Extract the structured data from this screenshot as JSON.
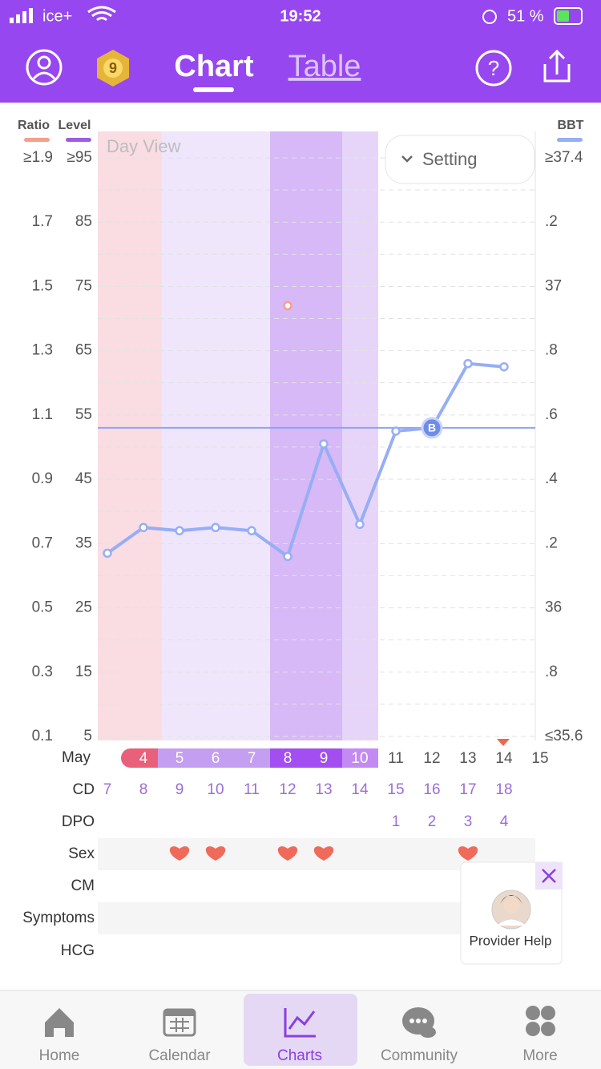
{
  "status_bar": {
    "carrier": "ice+",
    "time": "19:52",
    "battery": "51 %"
  },
  "header": {
    "badge": "9",
    "tabs": [
      "Chart",
      "Table"
    ]
  },
  "chart_data": {
    "type": "line",
    "overlay_label": "Day View",
    "setting_button": "Setting",
    "axis_titles": {
      "ratio": "Ratio",
      "level": "Level",
      "bbt": "BBT"
    },
    "month": "May",
    "x": [
      null,
      "4",
      "5",
      "6",
      "7",
      "8",
      "9",
      "10",
      "11",
      "12",
      "13",
      "14",
      "15"
    ],
    "ylim": [
      0.1,
      1.9
    ],
    "yticks": [
      {
        "value": 1.9,
        "label": "≥1.9"
      },
      1.7,
      1.5,
      1.3,
      1.1,
      0.9,
      0.7,
      0.5,
      0.3,
      0.1
    ],
    "level_lim": [
      5,
      95
    ],
    "level_ticks": [
      {
        "value": 95,
        "label": "≥95"
      },
      85,
      75,
      65,
      55,
      45,
      35,
      25,
      15,
      5
    ],
    "y2lim": [
      35.6,
      37.4
    ],
    "y2ticks": [
      {
        "value": 37.4,
        "label": "≥37.4"
      },
      {
        "value": 37.2,
        "label": ".2"
      },
      37,
      {
        "value": 36.8,
        "label": ".8"
      },
      {
        "value": 36.6,
        "label": ".6"
      },
      {
        "value": 36.4,
        "label": ".4"
      },
      {
        "value": 36.2,
        "label": ".2"
      },
      36,
      {
        "value": 35.8,
        "label": ".8"
      },
      {
        "value": 35.6,
        "label": "≤35.6"
      }
    ],
    "grid": true,
    "series": [
      {
        "name": "BBT",
        "color": "#97aef5",
        "axis": "y2",
        "values": [
          36.17,
          36.25,
          36.24,
          36.25,
          36.24,
          36.16,
          36.51,
          36.26,
          36.55,
          36.56,
          36.76,
          36.75,
          null
        ]
      },
      {
        "name": "Ratio",
        "color": "#f4a08a",
        "values": [
          null,
          null,
          null,
          null,
          null,
          1.44,
          null,
          null,
          null,
          null,
          null,
          null,
          null
        ]
      }
    ],
    "coverline": 36.56,
    "coverline_marker": "B",
    "rows": {
      "labels": [
        "CD",
        "DPO",
        "Sex",
        "CM",
        "Symptoms",
        "HCG"
      ],
      "cd": [
        7,
        8,
        9,
        10,
        11,
        12,
        13,
        14,
        15,
        16,
        17,
        18,
        null
      ],
      "dpo": [
        null,
        null,
        null,
        null,
        null,
        null,
        null,
        null,
        1,
        2,
        3,
        4,
        null
      ],
      "sex": [
        false,
        false,
        true,
        true,
        false,
        true,
        true,
        false,
        false,
        false,
        true,
        false,
        false
      ]
    }
  },
  "provider_help": "Provider Help",
  "nav": [
    "Home",
    "Calendar",
    "Charts",
    "Community",
    "More"
  ]
}
